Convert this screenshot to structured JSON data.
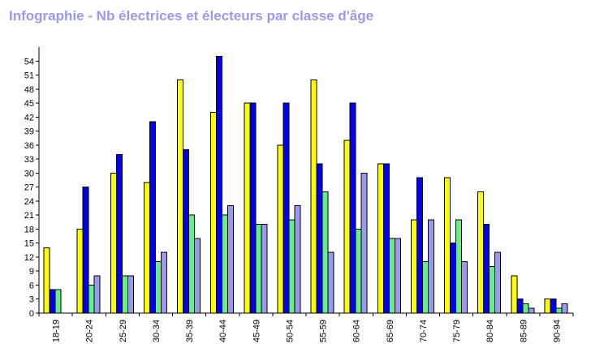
{
  "title_color": "#9999ee",
  "chart_data": {
    "type": "bar",
    "title": "Infographie - Nb électrices et électeurs par classe d'âge",
    "xlabel": "",
    "ylabel": "",
    "ylim": [
      0,
      57
    ],
    "yticks": [
      "0",
      "3",
      "6",
      "9",
      "12",
      "15",
      "18",
      "21",
      "24",
      "27",
      "30",
      "33",
      "36",
      "39",
      "42",
      "45",
      "48",
      "51",
      "54"
    ],
    "grid": false,
    "legend": "none",
    "categories": [
      "18-19",
      "20-24",
      "25-29",
      "30-34",
      "35-39",
      "40-44",
      "45-49",
      "50-54",
      "55-59",
      "60-64",
      "65-69",
      "70-74",
      "75-79",
      "80-84",
      "85-89",
      "90-94"
    ],
    "series": [
      {
        "color": "#ffff00",
        "values": [
          14,
          18,
          30,
          28,
          50,
          43,
          45,
          36,
          50,
          37,
          32,
          20,
          29,
          26,
          8,
          3
        ]
      },
      {
        "color": "#0000ee",
        "values": [
          5,
          27,
          34,
          41,
          35,
          55,
          45,
          45,
          32,
          45,
          32,
          29,
          15,
          19,
          3,
          3
        ]
      },
      {
        "color": "#66ee88",
        "values": [
          5,
          6,
          8,
          11,
          21,
          21,
          19,
          20,
          26,
          18,
          16,
          11,
          20,
          10,
          2,
          1
        ]
      },
      {
        "color": "#9999ee",
        "values": [
          0,
          8,
          8,
          13,
          16,
          23,
          19,
          23,
          13,
          30,
          16,
          20,
          11,
          13,
          1,
          2
        ]
      }
    ]
  }
}
